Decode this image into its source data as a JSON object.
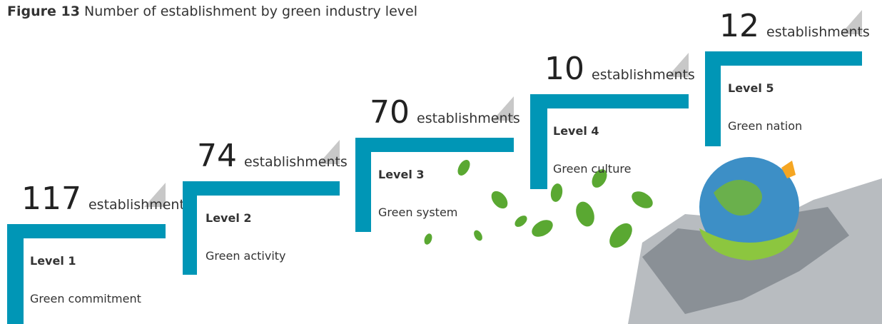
{
  "title": {
    "label": "Figure 13",
    "text": "Number of establishment by green industry level"
  },
  "steps": [
    {
      "count": "117",
      "unit": "establishments",
      "level": "Level 1",
      "name": "Green commitment"
    },
    {
      "count": "74",
      "unit": "establishments",
      "level": "Level 2",
      "name": "Green activity"
    },
    {
      "count": "70",
      "unit": "establishments",
      "level": "Level 3",
      "name": "Green system"
    },
    {
      "count": "10",
      "unit": "establishments",
      "level": "Level 4",
      "name": "Green culture"
    },
    {
      "count": "12",
      "unit": "establishments",
      "level": "Level 5",
      "name": "Green nation"
    }
  ]
}
